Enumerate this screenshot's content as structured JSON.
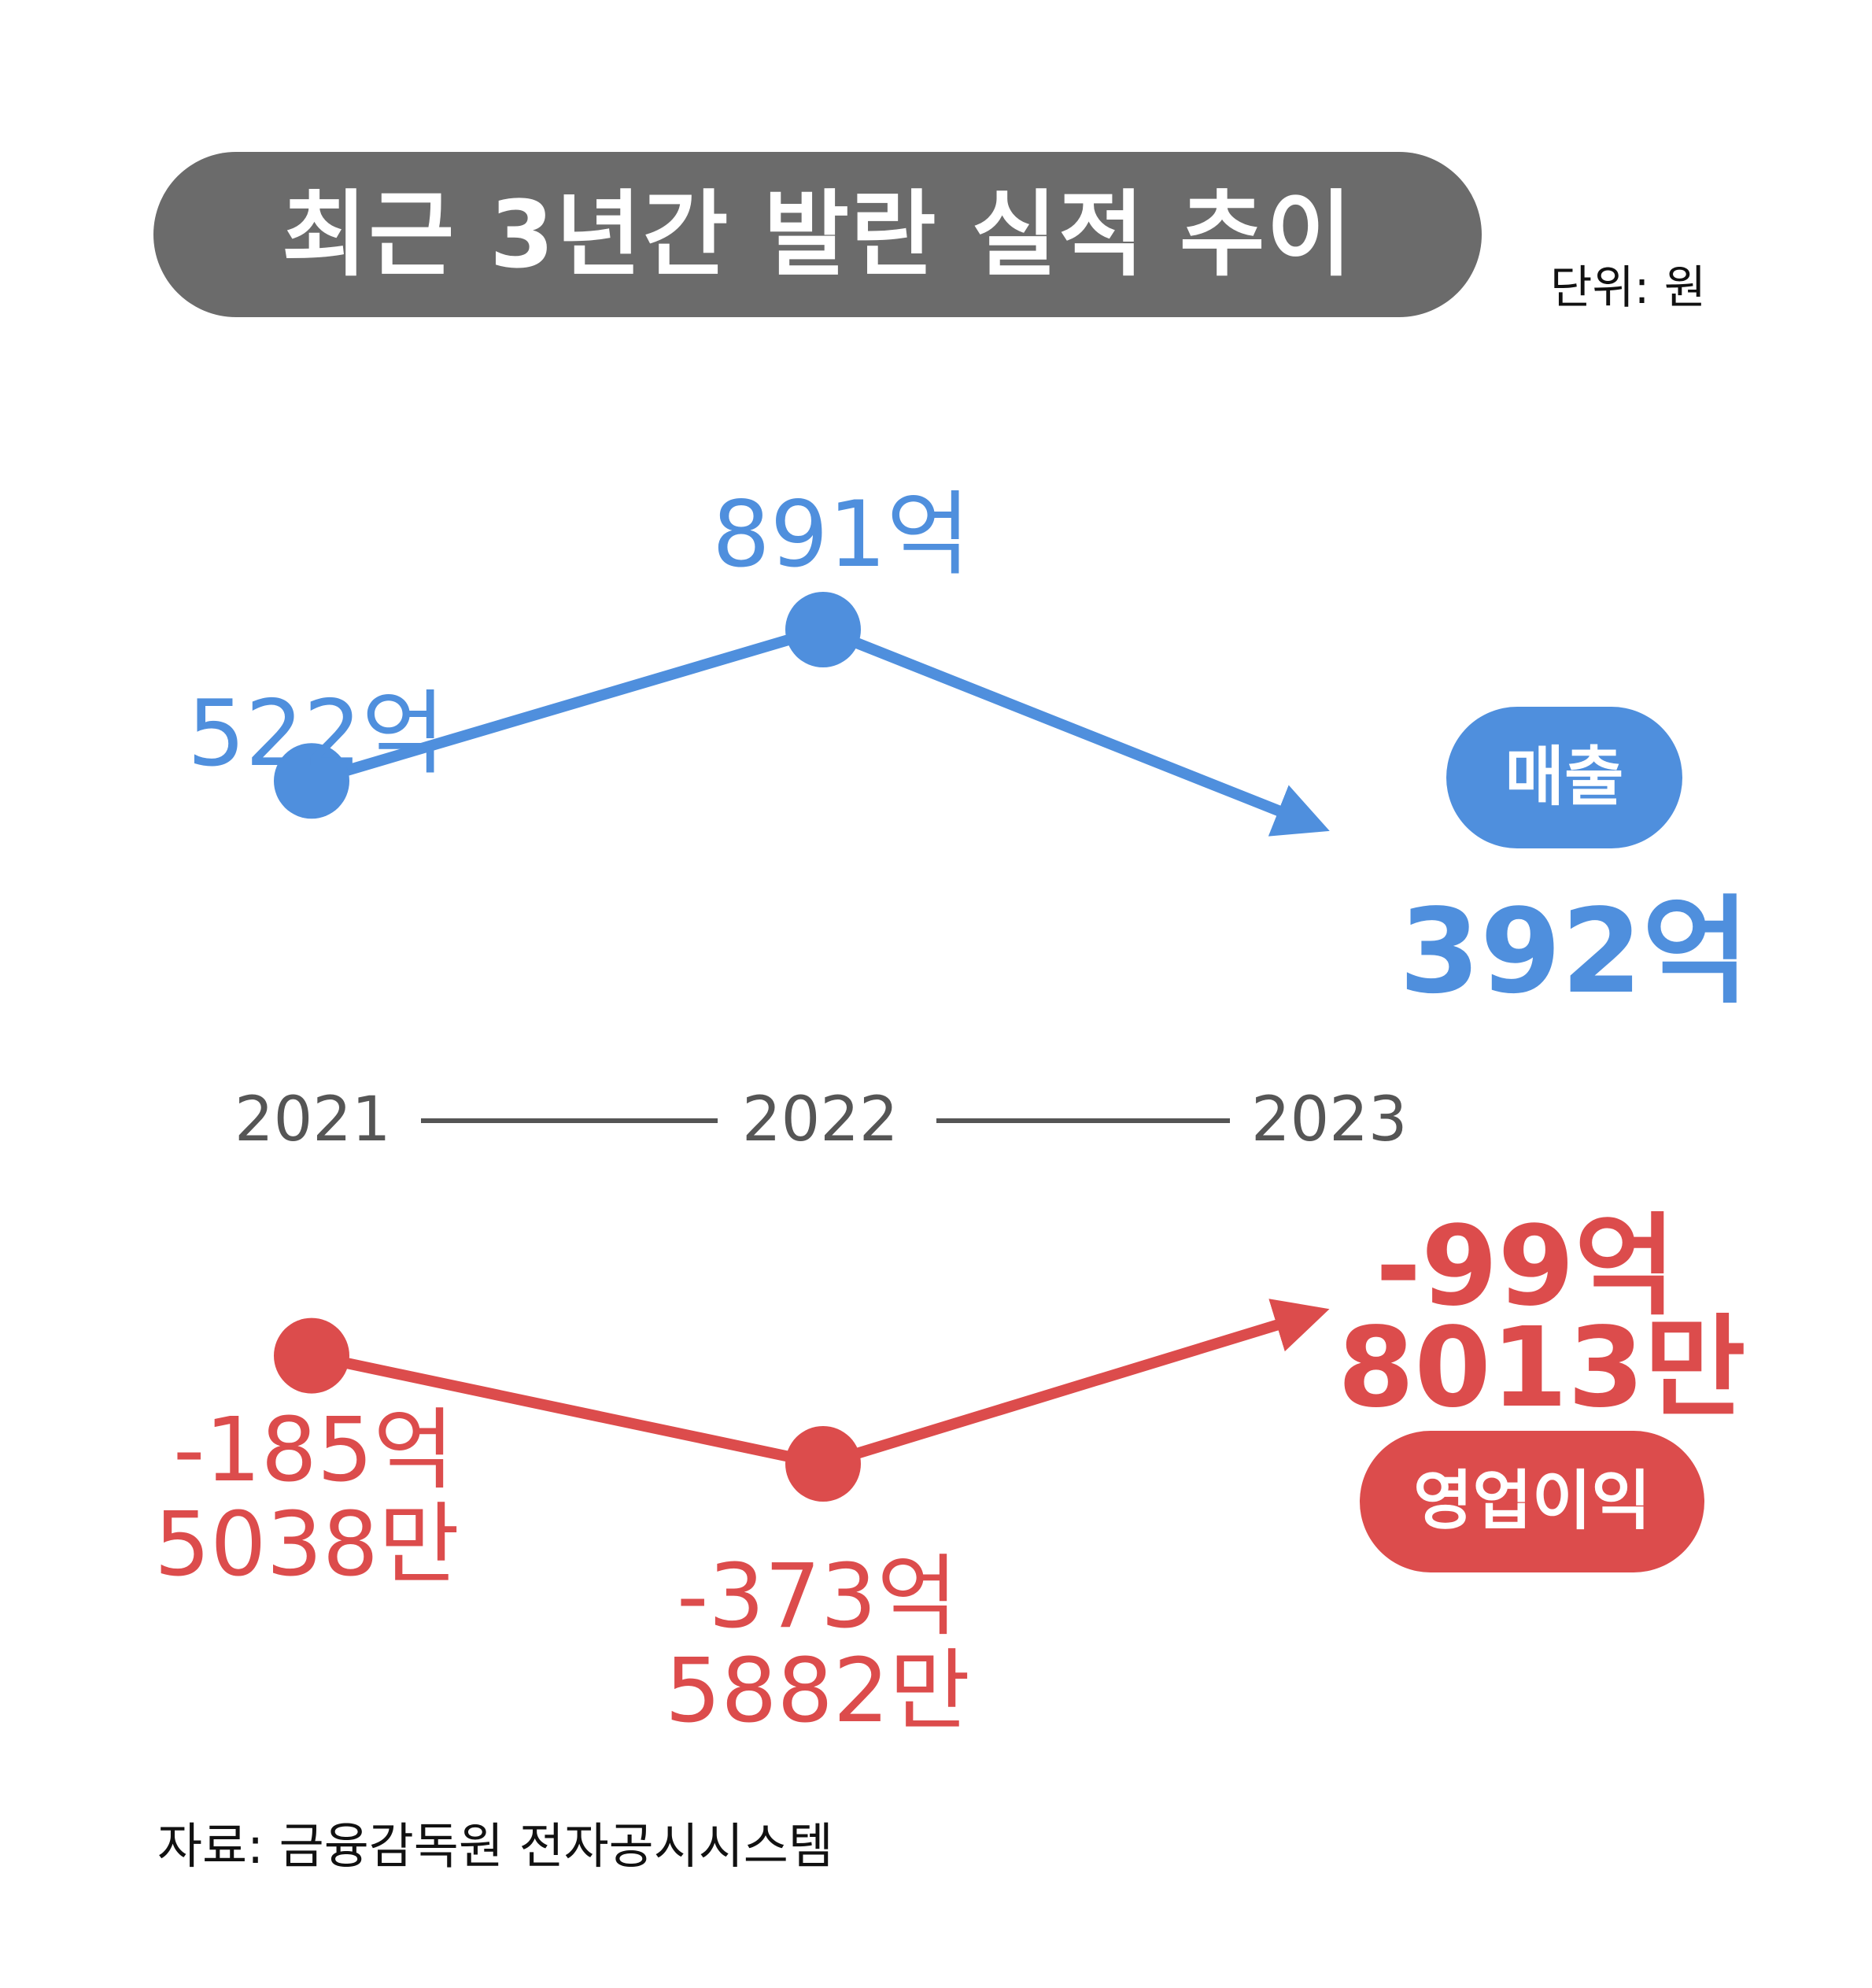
{
  "title": "최근 3년간 발란 실적 추이",
  "unit_label": "단위: 원",
  "source": "자료: 금융감독원 전자공시시스템",
  "colors": {
    "revenue": "#4f8fdd",
    "operating_profit": "#dc4c4c",
    "title_bg": "#6b6b6b",
    "axis": "#555555"
  },
  "chart_data": {
    "type": "line",
    "x": [
      "2021",
      "2022",
      "2023"
    ],
    "series": [
      {
        "name": "매출",
        "values": [
          52200000000,
          89100000000,
          39200000000
        ],
        "labels": [
          "522억",
          "891억",
          "392억"
        ]
      },
      {
        "name": "영업이익",
        "values": [
          -18550380000,
          -37358820000,
          -9980130000
        ],
        "labels": [
          "-185억 5038만",
          "-373억 5882만",
          "-99억 8013만"
        ]
      }
    ]
  },
  "labels": {
    "rev_2021": "522억",
    "rev_2022": "891억",
    "rev_2023": "392억",
    "op_2021_a": "-185억",
    "op_2021_b": "5038만",
    "op_2022_a": "-373억",
    "op_2022_b": "5882만",
    "op_2023_a": "-99억",
    "op_2023_b": "8013만",
    "legend_revenue": "매출",
    "legend_op": "영업이익"
  }
}
